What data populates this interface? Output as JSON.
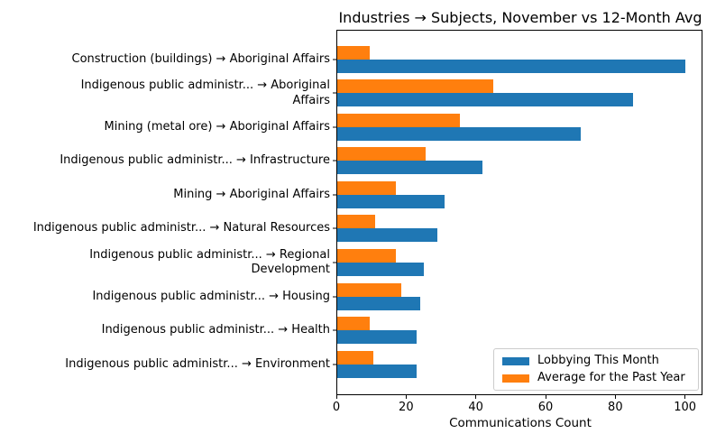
{
  "chart_data": {
    "type": "bar",
    "orientation": "horizontal",
    "title": "Industries → Subjects, November vs 12-Month Avg",
    "xlabel": "Communications Count",
    "xlim": [
      0,
      105
    ],
    "xticks": [
      0,
      20,
      40,
      60,
      80,
      100
    ],
    "grid": false,
    "legend_position": "lower right",
    "categories": [
      "Construction (buildings) → Aboriginal Affairs",
      "Indigenous public administr... → Aboriginal\nAffairs",
      "Mining (metal ore) → Aboriginal Affairs",
      "Indigenous public administr... → Infrastructure",
      "Mining → Aboriginal Affairs",
      "Indigenous public administr... → Natural Resources",
      "Indigenous public administr... → Regional\nDevelopment",
      "Indigenous public administr... → Housing",
      "Indigenous public administr... → Health",
      "Indigenous public administr... → Environment"
    ],
    "series": [
      {
        "name": "Lobbying This Month",
        "color": "#1f77b4",
        "values": [
          100,
          85,
          70,
          42,
          31,
          29,
          25,
          24,
          23,
          23
        ]
      },
      {
        "name": "Average for the Past Year",
        "color": "#ff7f0e",
        "values": [
          9.5,
          45,
          35.5,
          25.5,
          17,
          11,
          17,
          18.5,
          9.5,
          10.5
        ]
      }
    ]
  }
}
